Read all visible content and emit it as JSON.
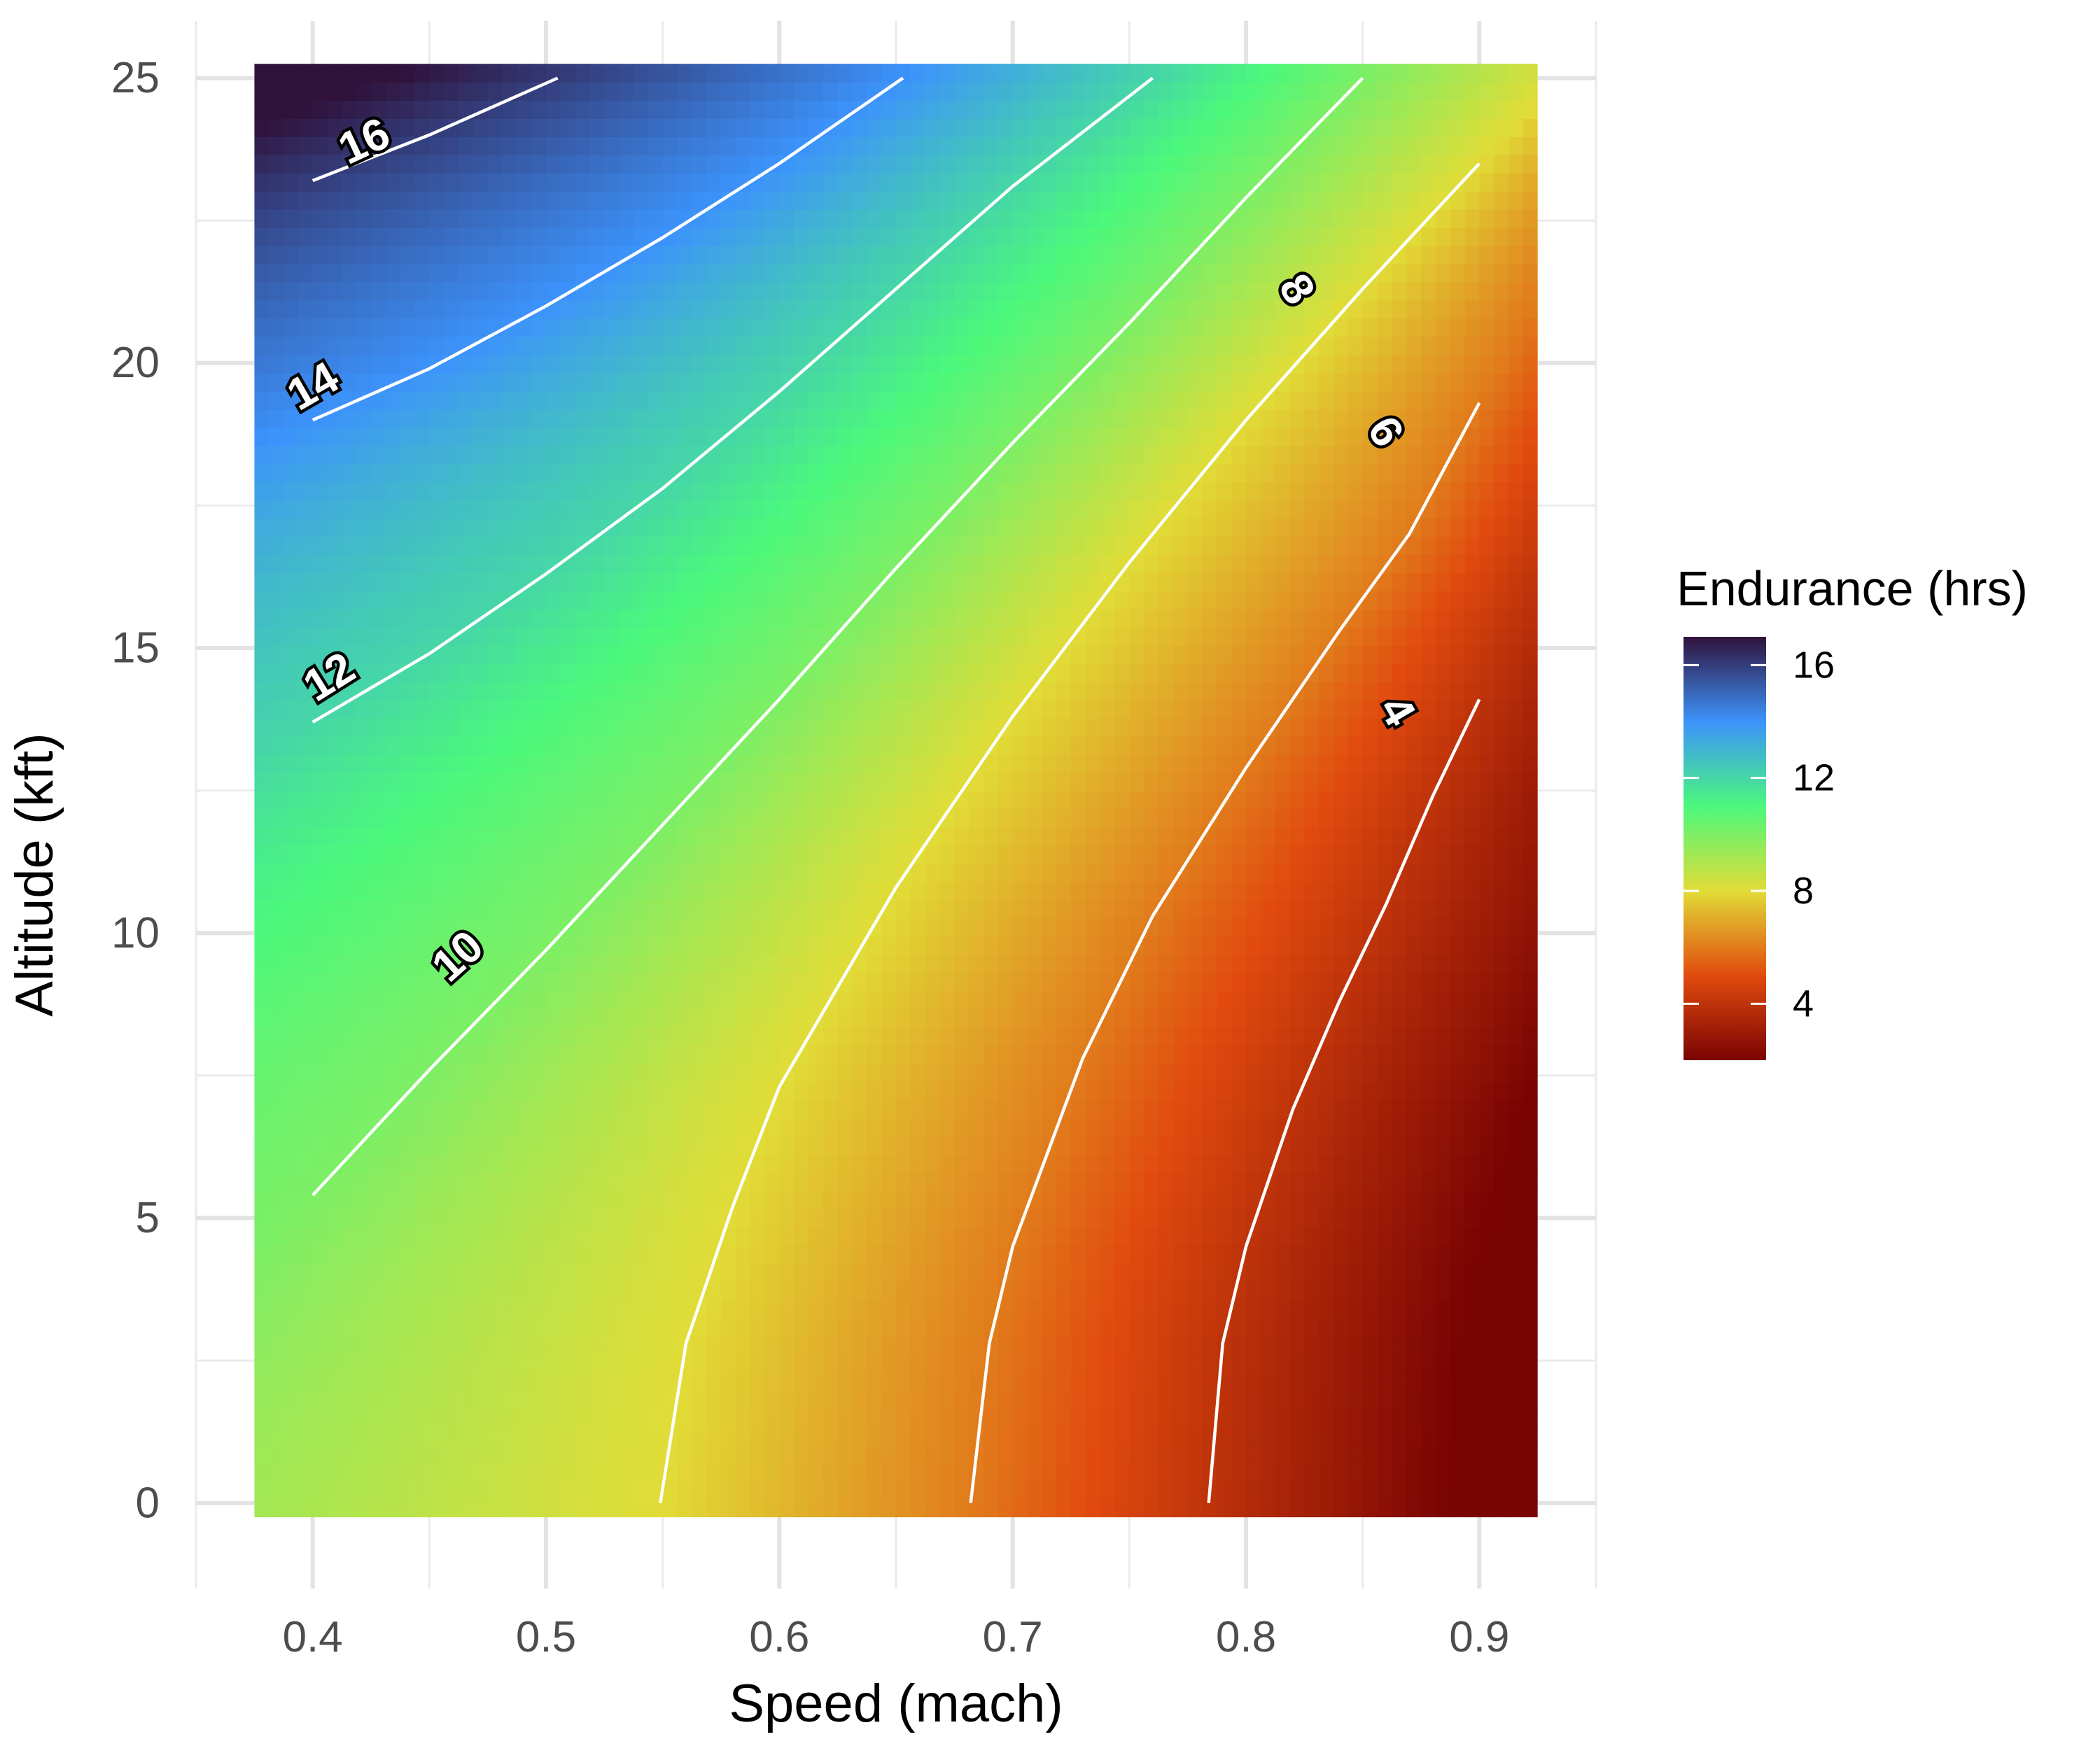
{
  "chart_data": {
    "type": "heatmap",
    "subtype": "filled-contour",
    "title": "",
    "xlabel": "Speed (mach)",
    "ylabel": "Altitude (kft)",
    "xlim": [
      0.35,
      0.95
    ],
    "ylim": [
      -1.5,
      26
    ],
    "x_ticks": [
      0.4,
      0.5,
      0.6,
      0.7,
      0.8,
      0.9
    ],
    "x_tick_labels": [
      "0.4",
      "0.5",
      "0.6",
      "0.7",
      "0.8",
      "0.9"
    ],
    "y_ticks": [
      0,
      5,
      10,
      15,
      20,
      25
    ],
    "y_tick_labels": [
      "0",
      "5",
      "10",
      "15",
      "20",
      "25"
    ],
    "data_extent": {
      "x": [
        0.375,
        0.925
      ],
      "y": [
        -0.25,
        25.25
      ]
    },
    "grid": true,
    "colorscale": [
      "#7a0403",
      "#e14b0e",
      "#e1dc37",
      "#4bf87c",
      "#3c93fb",
      "#30123b"
    ],
    "colorscale_range": [
      2,
      17
    ],
    "legend": {
      "title": "Endurance (hrs)",
      "position": "right",
      "ticks": [
        16,
        12,
        8,
        4
      ],
      "tick_labels": [
        "16",
        "12",
        "8",
        "4"
      ]
    },
    "contours": [
      {
        "level": 16,
        "label": "16",
        "points": [
          [
            0.4,
            23.2
          ],
          [
            0.45,
            24.0
          ],
          [
            0.505,
            25.0
          ]
        ]
      },
      {
        "level": 14,
        "label": "14",
        "points": [
          [
            0.4,
            19.0
          ],
          [
            0.45,
            19.9
          ],
          [
            0.5,
            21.0
          ],
          [
            0.55,
            22.2
          ],
          [
            0.6,
            23.5
          ],
          [
            0.653,
            25.0
          ]
        ]
      },
      {
        "level": 12,
        "label": "12",
        "points": [
          [
            0.4,
            13.7
          ],
          [
            0.45,
            14.9
          ],
          [
            0.5,
            16.3
          ],
          [
            0.55,
            17.8
          ],
          [
            0.6,
            19.5
          ],
          [
            0.65,
            21.3
          ],
          [
            0.7,
            23.1
          ],
          [
            0.76,
            25.0
          ]
        ]
      },
      {
        "level": 10,
        "label": "10",
        "points": [
          [
            0.4,
            5.4
          ],
          [
            0.45,
            7.6
          ],
          [
            0.5,
            9.7
          ],
          [
            0.55,
            11.9
          ],
          [
            0.6,
            14.1
          ],
          [
            0.65,
            16.4
          ],
          [
            0.7,
            18.6
          ],
          [
            0.75,
            20.7
          ],
          [
            0.8,
            22.9
          ],
          [
            0.85,
            25.0
          ]
        ]
      },
      {
        "level": 8,
        "label": "8",
        "points": [
          [
            0.549,
            0.0
          ],
          [
            0.56,
            2.8
          ],
          [
            0.58,
            5.2
          ],
          [
            0.6,
            7.3
          ],
          [
            0.65,
            10.8
          ],
          [
            0.7,
            13.8
          ],
          [
            0.75,
            16.5
          ],
          [
            0.8,
            19.0
          ],
          [
            0.85,
            21.3
          ],
          [
            0.9,
            23.5
          ]
        ]
      },
      {
        "level": 6,
        "label": "6",
        "points": [
          [
            0.682,
            0.0
          ],
          [
            0.69,
            2.8
          ],
          [
            0.7,
            4.5
          ],
          [
            0.73,
            7.8
          ],
          [
            0.76,
            10.3
          ],
          [
            0.8,
            12.9
          ],
          [
            0.84,
            15.3
          ],
          [
            0.87,
            17.0
          ],
          [
            0.9,
            19.3
          ]
        ]
      },
      {
        "level": 4,
        "label": "4",
        "points": [
          [
            0.784,
            0.0
          ],
          [
            0.79,
            2.8
          ],
          [
            0.8,
            4.5
          ],
          [
            0.82,
            6.9
          ],
          [
            0.84,
            8.8
          ],
          [
            0.86,
            10.5
          ],
          [
            0.88,
            12.4
          ],
          [
            0.9,
            14.1
          ]
        ]
      }
    ],
    "contour_labels": [
      {
        "text": "16",
        "x": 0.422,
        "y": 23.9,
        "angle": -25
      },
      {
        "text": "14",
        "x": 0.4,
        "y": 19.6,
        "angle": -30
      },
      {
        "text": "12",
        "x": 0.407,
        "y": 14.5,
        "angle": -32
      },
      {
        "text": "10",
        "x": 0.462,
        "y": 9.6,
        "angle": -42
      },
      {
        "text": "8",
        "x": 0.822,
        "y": 21.3,
        "angle": 58
      },
      {
        "text": "6",
        "x": 0.86,
        "y": 18.8,
        "angle": 58
      },
      {
        "text": "4",
        "x": 0.865,
        "y": 13.9,
        "angle": 60
      }
    ]
  }
}
